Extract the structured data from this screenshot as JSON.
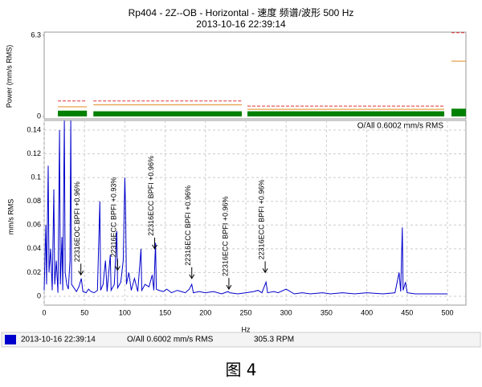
{
  "chart_data": [
    {
      "type": "band",
      "title": "Rp404 - 2Z--OB - Horizontal - 速度 频谱/波形 500 Hz",
      "subtitle": "2013-10-16 22:39:14",
      "y_label": "Power (mm/s RMS)",
      "ylim": [
        0,
        6.3
      ],
      "yticks": [
        0,
        6.3
      ],
      "xlim": [
        0,
        500
      ],
      "color": "#008000",
      "alarm_color": "#e03030",
      "warning_color": "#e08a20",
      "bands": [
        {
          "start": 17,
          "end": 53,
          "value": 0.45,
          "alarm": 1.2,
          "warning": 0.75
        },
        {
          "start": 61,
          "end": 245,
          "value": 0.4,
          "alarm": 1.2,
          "warning": 0.9
        },
        {
          "start": 252,
          "end": 496,
          "value": 0.4,
          "alarm": 0.8,
          "warning": 0.55
        }
      ],
      "overall": {
        "value": 0.6002,
        "alarm": 6.5,
        "warning": 4.3
      }
    },
    {
      "type": "line",
      "y_label": "mm/s RMS",
      "x_label": "Hz",
      "annotation": "O/All 0.6002 mm/s RMS",
      "xlim": [
        0,
        500
      ],
      "ylim": [
        0,
        0.14
      ],
      "xticks": [
        0,
        50,
        100,
        150,
        200,
        250,
        300,
        350,
        400,
        450,
        500
      ],
      "yticks": [
        0,
        0.02,
        0.04,
        0.06,
        0.08,
        0.1,
        0.12,
        0.14
      ],
      "grid": true,
      "x": [
        0,
        2,
        3,
        5,
        6,
        8,
        10,
        12,
        13,
        15,
        17,
        19,
        20,
        22,
        23,
        25,
        26,
        28,
        30,
        32,
        33,
        34,
        36,
        40,
        43,
        46,
        48,
        52,
        55,
        58,
        62,
        66,
        69,
        70,
        73,
        76,
        78,
        82,
        83,
        87,
        90,
        91,
        95,
        98,
        100,
        101,
        102,
        105,
        108,
        112,
        116,
        120,
        121,
        125,
        130,
        134,
        136,
        138,
        139,
        142,
        148,
        152,
        158,
        165,
        170,
        175,
        180,
        183,
        185,
        192,
        200,
        210,
        220,
        228,
        230,
        240,
        250,
        260,
        265,
        270,
        275,
        277,
        285,
        290,
        300,
        310,
        320,
        330,
        345,
        355,
        370,
        385,
        400,
        420,
        435,
        440,
        442,
        444,
        445,
        448,
        450,
        460,
        480,
        500
      ],
      "series": [
        {
          "name": "2013-10-16 22:39:14",
          "color": "#0000cc",
          "values": [
            0.005,
            0.06,
            0.01,
            0.11,
            0.02,
            0.04,
            0.005,
            0.09,
            0.01,
            0.03,
            0.003,
            0.14,
            0.01,
            0.05,
            0.005,
            0.148,
            0.02,
            0.01,
            0.006,
            0.03,
            0.148,
            0.01,
            0.008,
            0.004,
            0.008,
            0.015,
            0.004,
            0.003,
            0.006,
            0.004,
            0.003,
            0.005,
            0.08,
            0.005,
            0.01,
            0.03,
            0.004,
            0.035,
            0.005,
            0.01,
            0.055,
            0.007,
            0.012,
            0.03,
            0.1,
            0.07,
            0.01,
            0.02,
            0.005,
            0.015,
            0.004,
            0.04,
            0.005,
            0.01,
            0.008,
            0.018,
            0.005,
            0.045,
            0.006,
            0.005,
            0.004,
            0.006,
            0.003,
            0.005,
            0.004,
            0.003,
            0.006,
            0.01,
            0.003,
            0.004,
            0.003,
            0.004,
            0.002,
            0.004,
            0.003,
            0.002,
            0.003,
            0.004,
            0.005,
            0.003,
            0.012,
            0.003,
            0.004,
            0.003,
            0.006,
            0.002,
            0.003,
            0.002,
            0.003,
            0.002,
            0.003,
            0.002,
            0.003,
            0.002,
            0.003,
            0.02,
            0.004,
            0.058,
            0.005,
            0.012,
            0.003,
            0.002,
            0.002,
            0.002
          ]
        }
      ],
      "annotations": [
        {
          "text": "22316EOC BPFI +0.96%",
          "x": 45.5,
          "y": 0.018
        },
        {
          "text": "22316ECC BPFI +0.93%",
          "x": 91,
          "y": 0.022
        },
        {
          "text": "22316ECC BPFI +0.96%",
          "x": 137,
          "y": 0.04
        },
        {
          "text": "22316ECC BPFI +0.96%",
          "x": 183,
          "y": 0.015
        },
        {
          "text": "22316ECC BPFI +0.96%",
          "x": 229,
          "y": 0.006
        },
        {
          "text": "22316ECC BPFI +0.96%",
          "x": 274,
          "y": 0.02
        }
      ]
    }
  ],
  "legend": {
    "overall": "O/All 0.6002 mm/s RMS",
    "speed": "305.3 RPM"
  },
  "caption": "图 4"
}
